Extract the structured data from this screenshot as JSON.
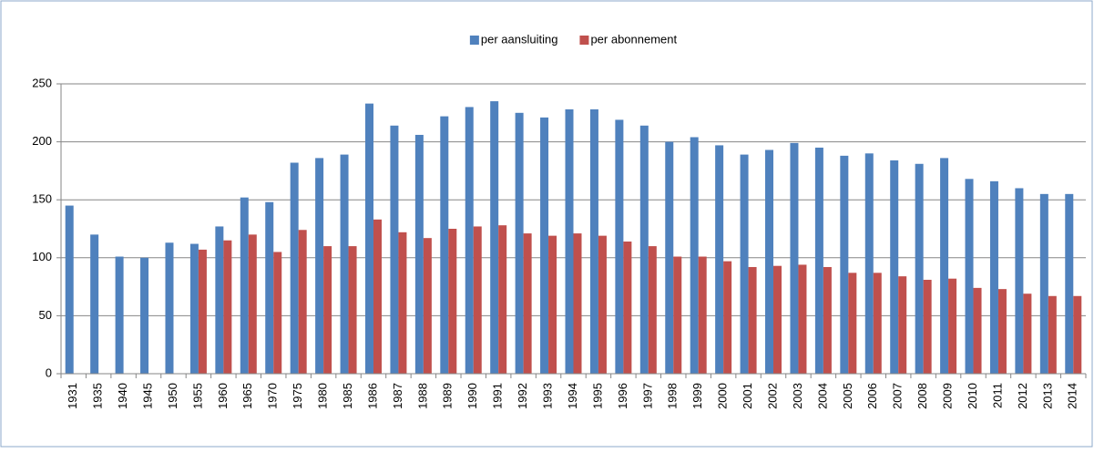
{
  "chart_data": {
    "type": "bar",
    "categories": [
      "1931",
      "1935",
      "1940",
      "1945",
      "1950",
      "1955",
      "1960",
      "1965",
      "1970",
      "1975",
      "1980",
      "1985",
      "1986",
      "1987",
      "1988",
      "1989",
      "1990",
      "1991",
      "1992",
      "1993",
      "1994",
      "1995",
      "1996",
      "1997",
      "1998",
      "1999",
      "2000",
      "2001",
      "2002",
      "2003",
      "2004",
      "2005",
      "2006",
      "2007",
      "2008",
      "2009",
      "2010",
      "2011",
      "2012",
      "2013",
      "2014"
    ],
    "series": [
      {
        "name": "per aansluiting",
        "color": "#4f81bd",
        "values": [
          145,
          120,
          101,
          100,
          113,
          112,
          127,
          152,
          148,
          182,
          186,
          189,
          233,
          214,
          206,
          222,
          230,
          235,
          225,
          221,
          228,
          228,
          219,
          214,
          200,
          204,
          197,
          189,
          193,
          199,
          195,
          188,
          190,
          184,
          181,
          186,
          168,
          166,
          160,
          155,
          155
        ]
      },
      {
        "name": "per abonnement",
        "color": "#c0504d",
        "values": [
          null,
          null,
          null,
          null,
          null,
          107,
          115,
          120,
          105,
          124,
          110,
          110,
          133,
          122,
          117,
          125,
          127,
          128,
          121,
          119,
          121,
          119,
          114,
          110,
          101,
          101,
          97,
          92,
          93,
          94,
          92,
          87,
          87,
          84,
          81,
          82,
          74,
          73,
          69,
          67,
          67
        ]
      }
    ],
    "ylim": [
      0,
      250
    ],
    "yticks": [
      0,
      50,
      100,
      150,
      200,
      250
    ],
    "grid": true,
    "legend": "top"
  }
}
